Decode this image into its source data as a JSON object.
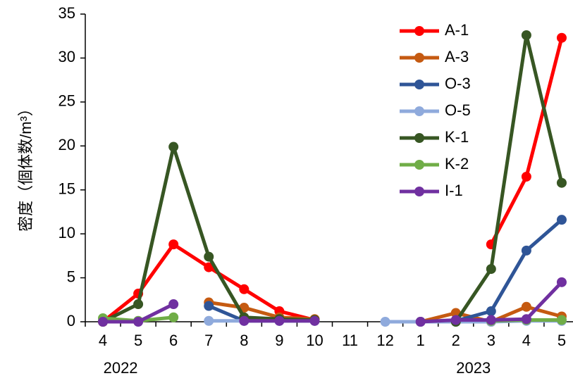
{
  "chart_data": {
    "type": "line",
    "ylabel": "密度（個体数/m³）",
    "ylim": [
      0,
      35
    ],
    "y_ticks": [
      "0",
      "5",
      "10",
      "15",
      "20",
      "25",
      "30",
      "35"
    ],
    "categories": [
      "4",
      "5",
      "6",
      "7",
      "8",
      "9",
      "10",
      "11",
      "12",
      "1",
      "2",
      "3",
      "4",
      "5"
    ],
    "year_labels": [
      {
        "text": "2022",
        "category_index": 0.5
      },
      {
        "text": "2023",
        "category_index": 10.5
      }
    ],
    "legend_position": "top-right",
    "grid": false,
    "series": [
      {
        "name": "A-1",
        "color": "#ff0000",
        "values": [
          0,
          3.2,
          8.8,
          6.2,
          3.7,
          1.2,
          0.2,
          null,
          null,
          null,
          null,
          8.8,
          16.5,
          32.3
        ]
      },
      {
        "name": "A-3",
        "color": "#c55a11",
        "values": [
          null,
          null,
          null,
          2.2,
          1.6,
          0.5,
          0.3,
          null,
          null,
          0,
          1.0,
          0,
          1.7,
          0.6
        ]
      },
      {
        "name": "O-3",
        "color": "#2f5597",
        "values": [
          null,
          null,
          null,
          1.8,
          0.1,
          0.1,
          0.1,
          null,
          null,
          0,
          0.1,
          1.2,
          8.1,
          11.6
        ]
      },
      {
        "name": "O-5",
        "color": "#8faadc",
        "values": [
          null,
          null,
          null,
          0.1,
          0.1,
          0.1,
          0.1,
          null,
          0,
          0,
          0,
          0,
          0.1,
          0.1
        ]
      },
      {
        "name": "K-1",
        "color": "#375623",
        "values": [
          0,
          2.0,
          19.9,
          7.4,
          0.5,
          0.3,
          0.2,
          null,
          null,
          null,
          0,
          6.0,
          32.6,
          15.8
        ]
      },
      {
        "name": "K-2",
        "color": "#70ad47",
        "values": [
          0.4,
          0.1,
          0.5,
          null,
          null,
          null,
          null,
          null,
          null,
          null,
          null,
          0.1,
          0.2,
          0.2
        ]
      },
      {
        "name": "I-1",
        "color": "#7030a0",
        "values": [
          0,
          0,
          2.0,
          null,
          0.1,
          0.1,
          0.1,
          null,
          null,
          0,
          0.2,
          0.2,
          0.3,
          4.5
        ]
      }
    ]
  }
}
